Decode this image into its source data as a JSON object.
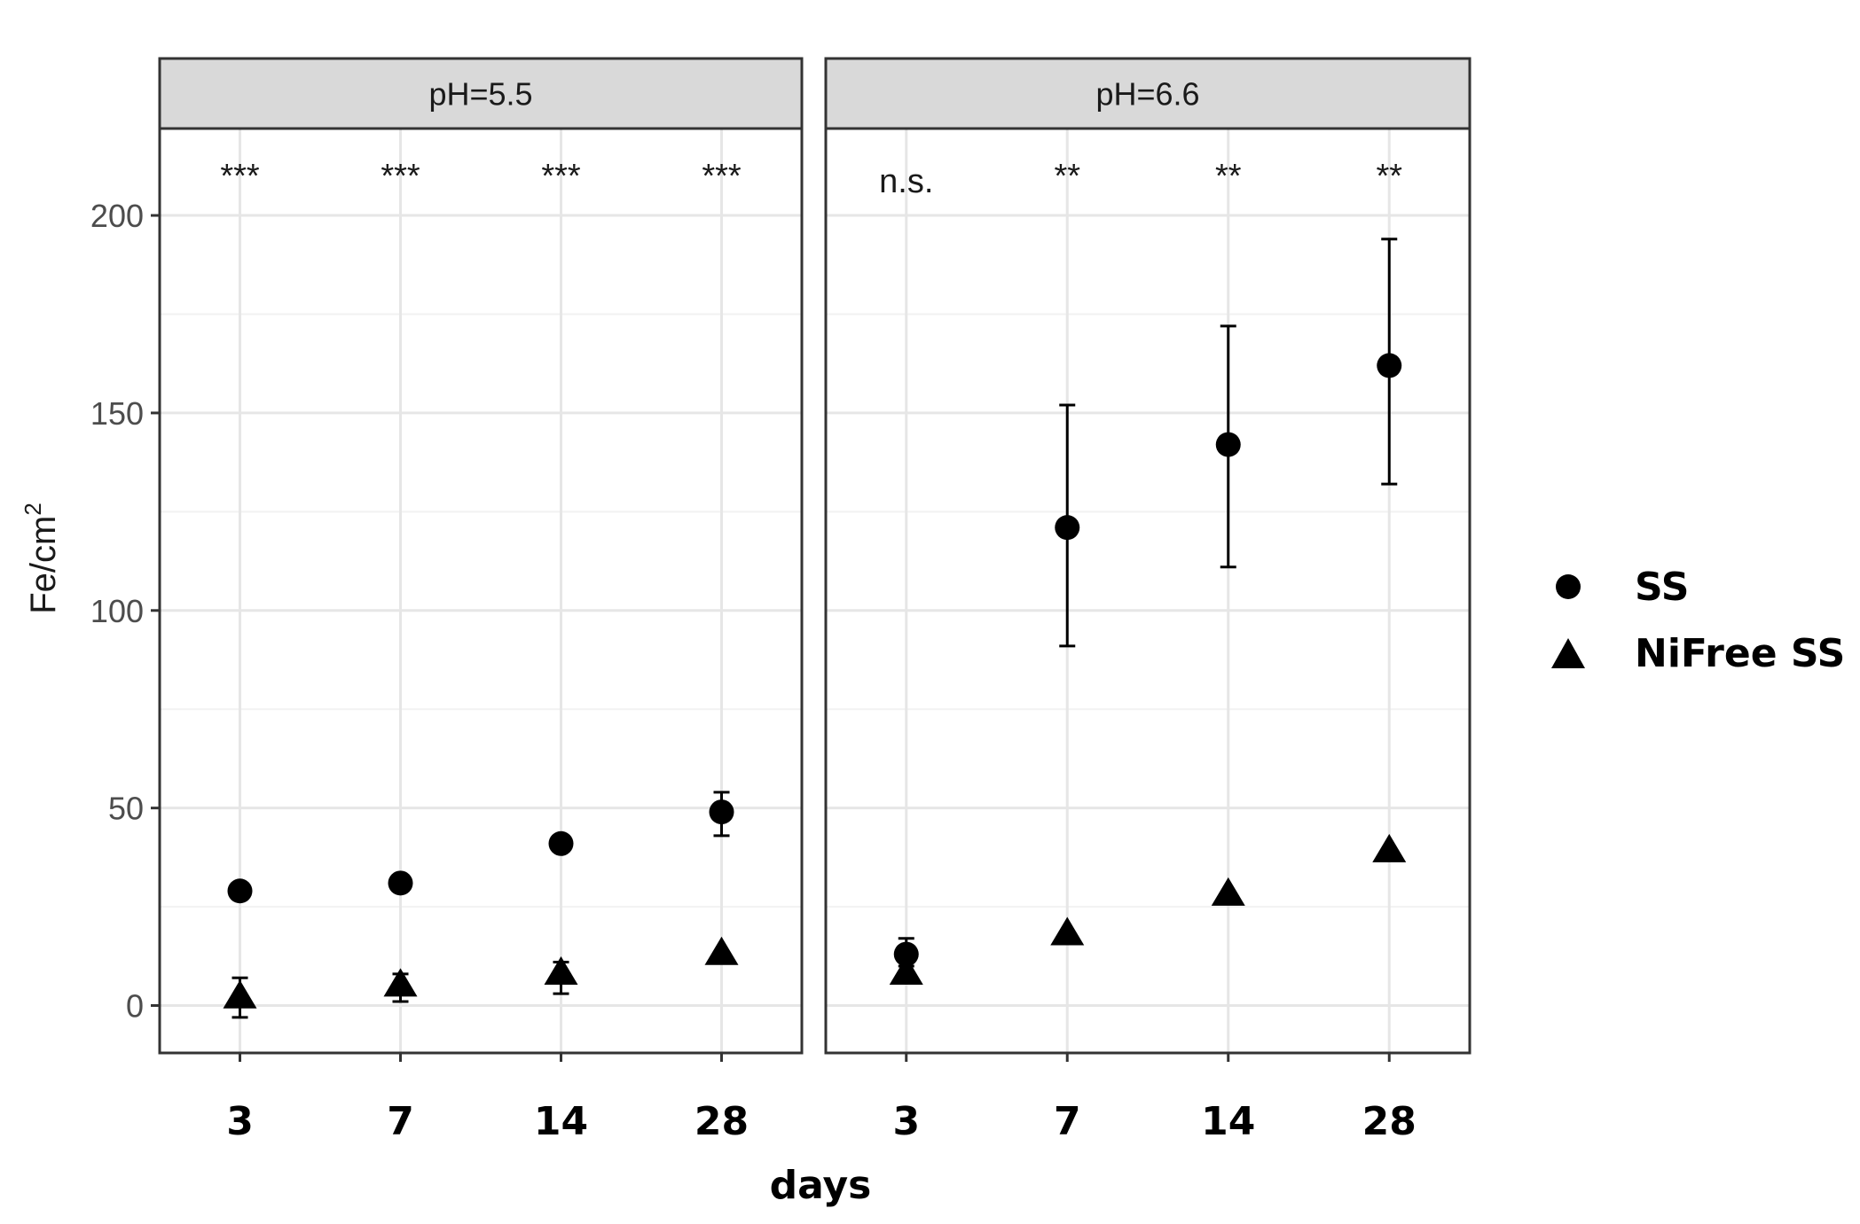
{
  "chart_data": {
    "type": "scatter",
    "xlabel": "days",
    "ylabel": "Fe/cm",
    "ylabel_superscript": "2",
    "categories": [
      "3",
      "7",
      "14",
      "28"
    ],
    "ylim": [
      -12,
      222
    ],
    "yticks": [
      0,
      50,
      100,
      150,
      200
    ],
    "grid": true,
    "legend_position": "right",
    "legend": [
      {
        "name": "SS",
        "shape": "circle"
      },
      {
        "name": "NiFree SS",
        "shape": "triangle"
      }
    ],
    "panels": [
      {
        "label": "pH=5.5",
        "significance": [
          "***",
          "***",
          "***",
          "***"
        ],
        "series": [
          {
            "name": "SS",
            "values": [
              29,
              31,
              41,
              49
            ],
            "error_low": [
              29,
              31,
              41,
              43
            ],
            "error_high": [
              29,
              31,
              41,
              54
            ]
          },
          {
            "name": "NiFree SS",
            "values": [
              2,
              5,
              8,
              13
            ],
            "error_low": [
              -3,
              1,
              3,
              13
            ],
            "error_high": [
              7,
              8,
              11,
              13
            ]
          }
        ]
      },
      {
        "label": "pH=6.6",
        "significance": [
          "n.s.",
          "**",
          "**",
          "**"
        ],
        "series": [
          {
            "name": "SS",
            "values": [
              13,
              121,
              142,
              162
            ],
            "error_low": [
              10,
              91,
              111,
              132
            ],
            "error_high": [
              17,
              152,
              172,
              194
            ]
          },
          {
            "name": "NiFree SS",
            "values": [
              8,
              18,
              28,
              39
            ],
            "error_low": [
              8,
              18,
              28,
              39
            ],
            "error_high": [
              8,
              18,
              28,
              39
            ]
          }
        ]
      }
    ]
  }
}
